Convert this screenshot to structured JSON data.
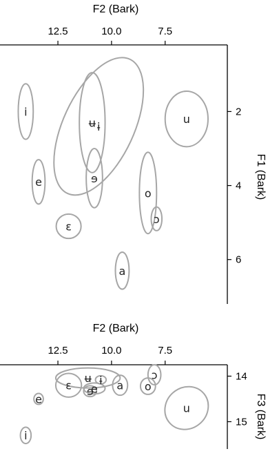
{
  "chart_data": [
    {
      "type": "scatter",
      "panel": "top",
      "xlabel": "F2 (Bark)",
      "ylabel": "F1 (Bark)",
      "x_reversed": true,
      "y_reversed": true,
      "x_ticks": [
        12.5,
        10.0,
        7.5
      ],
      "y_ticks": [
        2,
        4,
        6
      ],
      "xlim": [
        15.2,
        4.6
      ],
      "ylim": [
        0.2,
        7.2
      ],
      "x_tick_labels": [
        "12.5",
        "10.0",
        "7.5"
      ],
      "y_tick_labels": [
        "2",
        "4",
        "6"
      ],
      "vowels": [
        {
          "label": "i",
          "x": 14.0,
          "y": 2.0,
          "rx": 0.35,
          "ry": 0.75,
          "rot": 0
        },
        {
          "label": "ɨ",
          "x": 10.6,
          "y": 2.4,
          "rx": 1.65,
          "ry": 2.0,
          "rot": 25
        },
        {
          "label": "ʉ",
          "x": 10.9,
          "y": 2.3,
          "rx": 0.6,
          "ry": 1.35,
          "rot": 0
        },
        {
          "label": "u",
          "x": 6.5,
          "y": 2.2,
          "rx": 1.0,
          "ry": 0.75,
          "rot": 0
        },
        {
          "label": "e",
          "x": 13.4,
          "y": 3.9,
          "rx": 0.3,
          "ry": 0.6,
          "rot": 0
        },
        {
          "label": "ɘ",
          "x": 10.8,
          "y": 3.8,
          "rx": 0.38,
          "ry": 0.8,
          "rot": 0
        },
        {
          "label": "o",
          "x": 8.3,
          "y": 4.2,
          "rx": 0.4,
          "ry": 1.1,
          "rot": 0
        },
        {
          "label": "ɔ",
          "x": 7.9,
          "y": 4.9,
          "rx": 0.25,
          "ry": 0.32,
          "rot": 0
        },
        {
          "label": "ɛ",
          "x": 12.0,
          "y": 5.1,
          "rx": 0.58,
          "ry": 0.33,
          "rot": 0
        },
        {
          "label": "a",
          "x": 9.5,
          "y": 6.3,
          "rx": 0.32,
          "ry": 0.5,
          "rot": 0
        }
      ]
    },
    {
      "type": "scatter",
      "panel": "bottom",
      "xlabel": "F2 (Bark)",
      "ylabel": "F3 (Bark)",
      "x_reversed": true,
      "y_reversed": false,
      "x_ticks": [
        12.5,
        10.0,
        7.5
      ],
      "y_ticks": [
        15,
        14
      ],
      "xlim": [
        15.2,
        4.6
      ],
      "ylim": [
        13.75,
        15.6
      ],
      "x_tick_labels": [
        "12.5",
        "10.0",
        "7.5"
      ],
      "y_tick_labels": [
        "15",
        "14"
      ],
      "vowels": [
        {
          "label": "i",
          "x": 14.0,
          "y": 15.3,
          "rx": 0.25,
          "ry": 0.18,
          "rot": 0
        },
        {
          "label": "e",
          "x": 13.4,
          "y": 14.5,
          "rx": 0.22,
          "ry": 0.12,
          "rot": 0
        },
        {
          "label": "ɛ",
          "x": 12.0,
          "y": 14.2,
          "rx": 0.6,
          "ry": 0.26,
          "rot": 0
        },
        {
          "label": "ɘ",
          "x": 11.0,
          "y": 14.33,
          "rx": 0.3,
          "ry": 0.12,
          "rot": 0
        },
        {
          "label": "ʉ",
          "x": 11.1,
          "y": 14.04,
          "rx": 1.5,
          "ry": 0.22,
          "rot": 0
        },
        {
          "label": "e",
          "x": 10.8,
          "y": 14.27,
          "rx": 0.5,
          "ry": 0.12,
          "rot": 0
        },
        {
          "label": "ɨ",
          "x": 10.5,
          "y": 14.08,
          "rx": 0.25,
          "ry": 0.09,
          "rot": 0
        },
        {
          "label": "a",
          "x": 9.6,
          "y": 14.2,
          "rx": 0.35,
          "ry": 0.22,
          "rot": 0
        },
        {
          "label": "o",
          "x": 8.3,
          "y": 14.22,
          "rx": 0.35,
          "ry": 0.18,
          "rot": 0
        },
        {
          "label": "ɔ",
          "x": 8.0,
          "y": 13.97,
          "rx": 0.3,
          "ry": 0.22,
          "rot": 0
        },
        {
          "label": "u",
          "x": 6.5,
          "y": 14.7,
          "rx": 1.05,
          "ry": 0.45,
          "rot": -40
        }
      ]
    }
  ]
}
